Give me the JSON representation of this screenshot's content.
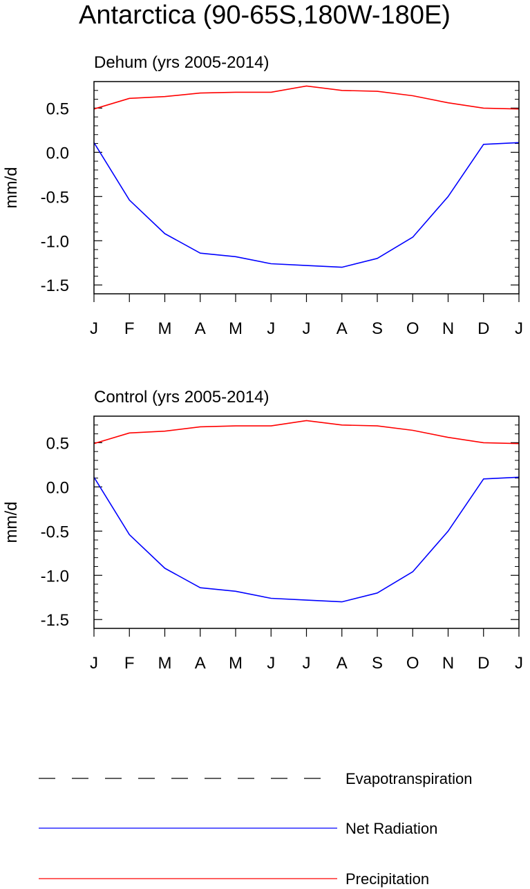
{
  "figure": {
    "title": "Antarctica (90-65S,180W-180E)"
  },
  "chart_data": [
    {
      "type": "line",
      "title": "Dehum (yrs 2005-2014)",
      "ylabel": "mm/d",
      "xlabel": "",
      "categories": [
        "J",
        "F",
        "M",
        "A",
        "M",
        "J",
        "J",
        "A",
        "S",
        "O",
        "N",
        "D",
        "J"
      ],
      "ylim": [
        -1.6,
        0.8
      ],
      "yticks": [
        0.5,
        0.0,
        -0.5,
        -1.0,
        -1.5
      ],
      "ytick_labels": [
        "0.5",
        "0.0",
        "-0.5",
        "-1.0",
        "-1.5"
      ],
      "grid": false,
      "series": [
        {
          "name": "Net Radiation",
          "color": "#0000ff",
          "values": [
            0.11,
            -0.54,
            -0.92,
            -1.14,
            -1.18,
            -1.26,
            -1.28,
            -1.3,
            -1.2,
            -0.96,
            -0.5,
            0.09,
            0.11
          ]
        },
        {
          "name": "Precipitation",
          "color": "#ff0000",
          "values": [
            0.49,
            0.61,
            0.63,
            0.67,
            0.68,
            0.68,
            0.75,
            0.7,
            0.69,
            0.64,
            0.56,
            0.5,
            0.49
          ]
        }
      ]
    },
    {
      "type": "line",
      "title": "Control (yrs 2005-2014)",
      "ylabel": "mm/d",
      "xlabel": "",
      "categories": [
        "J",
        "F",
        "M",
        "A",
        "M",
        "J",
        "J",
        "A",
        "S",
        "O",
        "N",
        "D",
        "J"
      ],
      "ylim": [
        -1.6,
        0.8
      ],
      "yticks": [
        0.5,
        0.0,
        -0.5,
        -1.0,
        -1.5
      ],
      "ytick_labels": [
        "0.5",
        "0.0",
        "-0.5",
        "-1.0",
        "-1.5"
      ],
      "grid": false,
      "series": [
        {
          "name": "Net Radiation",
          "color": "#0000ff",
          "values": [
            0.11,
            -0.54,
            -0.92,
            -1.14,
            -1.18,
            -1.26,
            -1.28,
            -1.3,
            -1.2,
            -0.96,
            -0.5,
            0.09,
            0.11
          ]
        },
        {
          "name": "Precipitation",
          "color": "#ff0000",
          "values": [
            0.49,
            0.61,
            0.63,
            0.68,
            0.69,
            0.69,
            0.75,
            0.7,
            0.69,
            0.64,
            0.56,
            0.5,
            0.49
          ]
        }
      ]
    }
  ],
  "legend": {
    "placement": "bottom",
    "items": [
      {
        "label": "Evapotranspiration",
        "color": "#000000",
        "style": "dashed"
      },
      {
        "label": "Net Radiation",
        "color": "#0000ff",
        "style": "solid"
      },
      {
        "label": "Precipitation",
        "color": "#ff0000",
        "style": "solid"
      }
    ]
  }
}
